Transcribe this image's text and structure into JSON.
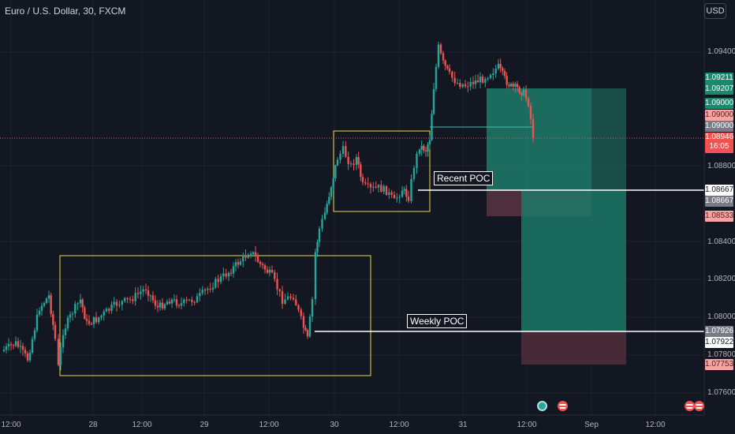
{
  "header": {
    "symbol_title": "Euro / U.S. Dollar, 30, FXCM",
    "currency_button": "USD"
  },
  "annotations": {
    "recent_poc": "Recent POC",
    "weekly_poc": "Weekly POC"
  },
  "price_axis": {
    "ticks": [
      "1.09400",
      "1.08800",
      "1.08400",
      "1.08200",
      "1.08000",
      "1.07800",
      "1.07600"
    ]
  },
  "price_tags": {
    "tp_1": "1.09211",
    "tp_2": "1.09207",
    "level_a": "1.09000",
    "level_b": "1.09000",
    "level_c": "1.09000",
    "last_price": "1.08946",
    "countdown": "16:05",
    "recent_poc_1": "1.08667",
    "recent_poc_2": "1.08667",
    "stop_1": "1.08533",
    "weekly_poc_1": "1.07926",
    "weekly_poc_2": "1.07922",
    "stop_2": "1.07753"
  },
  "time_axis": {
    "ticks": [
      "12:00",
      "28",
      "12:00",
      "29",
      "12:00",
      "30",
      "12:00",
      "31",
      "12:00",
      "Sep",
      "12:00"
    ]
  },
  "colors": {
    "background": "#131722",
    "bull": "#26a69a",
    "bear": "#ef5350",
    "box": "#e8d94a",
    "profit_zone": "#1d8a72",
    "loss_zone": "#5a2f3b"
  }
}
